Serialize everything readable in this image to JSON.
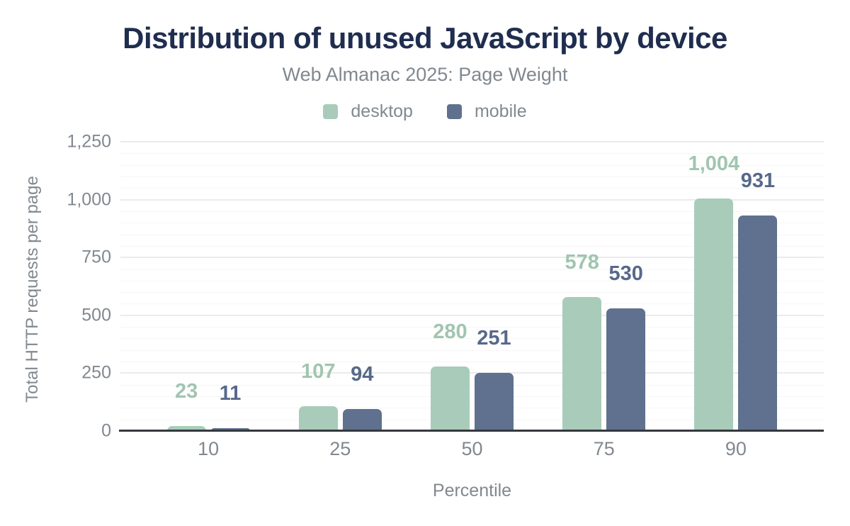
{
  "header": {
    "title": "Distribution of unused JavaScript by device",
    "subtitle": "Web Almanac 2025: Page Weight"
  },
  "legend": [
    {
      "label": "desktop",
      "color": "#a8ccb9"
    },
    {
      "label": "mobile",
      "color": "#5f718e"
    }
  ],
  "colors": {
    "title_navy": "#1f2d4f",
    "muted_gray": "#82888f",
    "axis_baseline": "#35383e",
    "major_gridline": "#ebebeb",
    "minor_gridline": "#f6f6f6"
  },
  "chart_data": {
    "type": "bar",
    "title": "Distribution of unused JavaScript by device",
    "subtitle": "Web Almanac 2025: Page Weight",
    "categories": [
      "10",
      "25",
      "50",
      "75",
      "90"
    ],
    "series": [
      {
        "name": "desktop",
        "color": "#a8ccb9",
        "label_color": "#a0c5b0",
        "values": [
          23,
          107,
          280,
          578,
          1004
        ],
        "labels": [
          "23",
          "107",
          "280",
          "578",
          "1,004"
        ]
      },
      {
        "name": "mobile",
        "color": "#5f718e",
        "label_color": "#57698a",
        "values": [
          11,
          94,
          251,
          530,
          931
        ],
        "labels": [
          "11",
          "94",
          "251",
          "530",
          "931"
        ]
      }
    ],
    "xlabel": "Percentile",
    "ylabel": "Total HTTP requests per page",
    "ylim": [
      0,
      1250
    ],
    "yticks": [
      {
        "value": 0,
        "label": "0"
      },
      {
        "value": 250,
        "label": "250"
      },
      {
        "value": 500,
        "label": "500"
      },
      {
        "value": 750,
        "label": "750"
      },
      {
        "value": 1000,
        "label": "1,000"
      },
      {
        "value": 1250,
        "label": "1,250"
      }
    ],
    "grid": {
      "major_step": 250,
      "minor_step": 50,
      "minor_on": true
    },
    "legend_position": "top",
    "value_labels": "above-bars"
  }
}
